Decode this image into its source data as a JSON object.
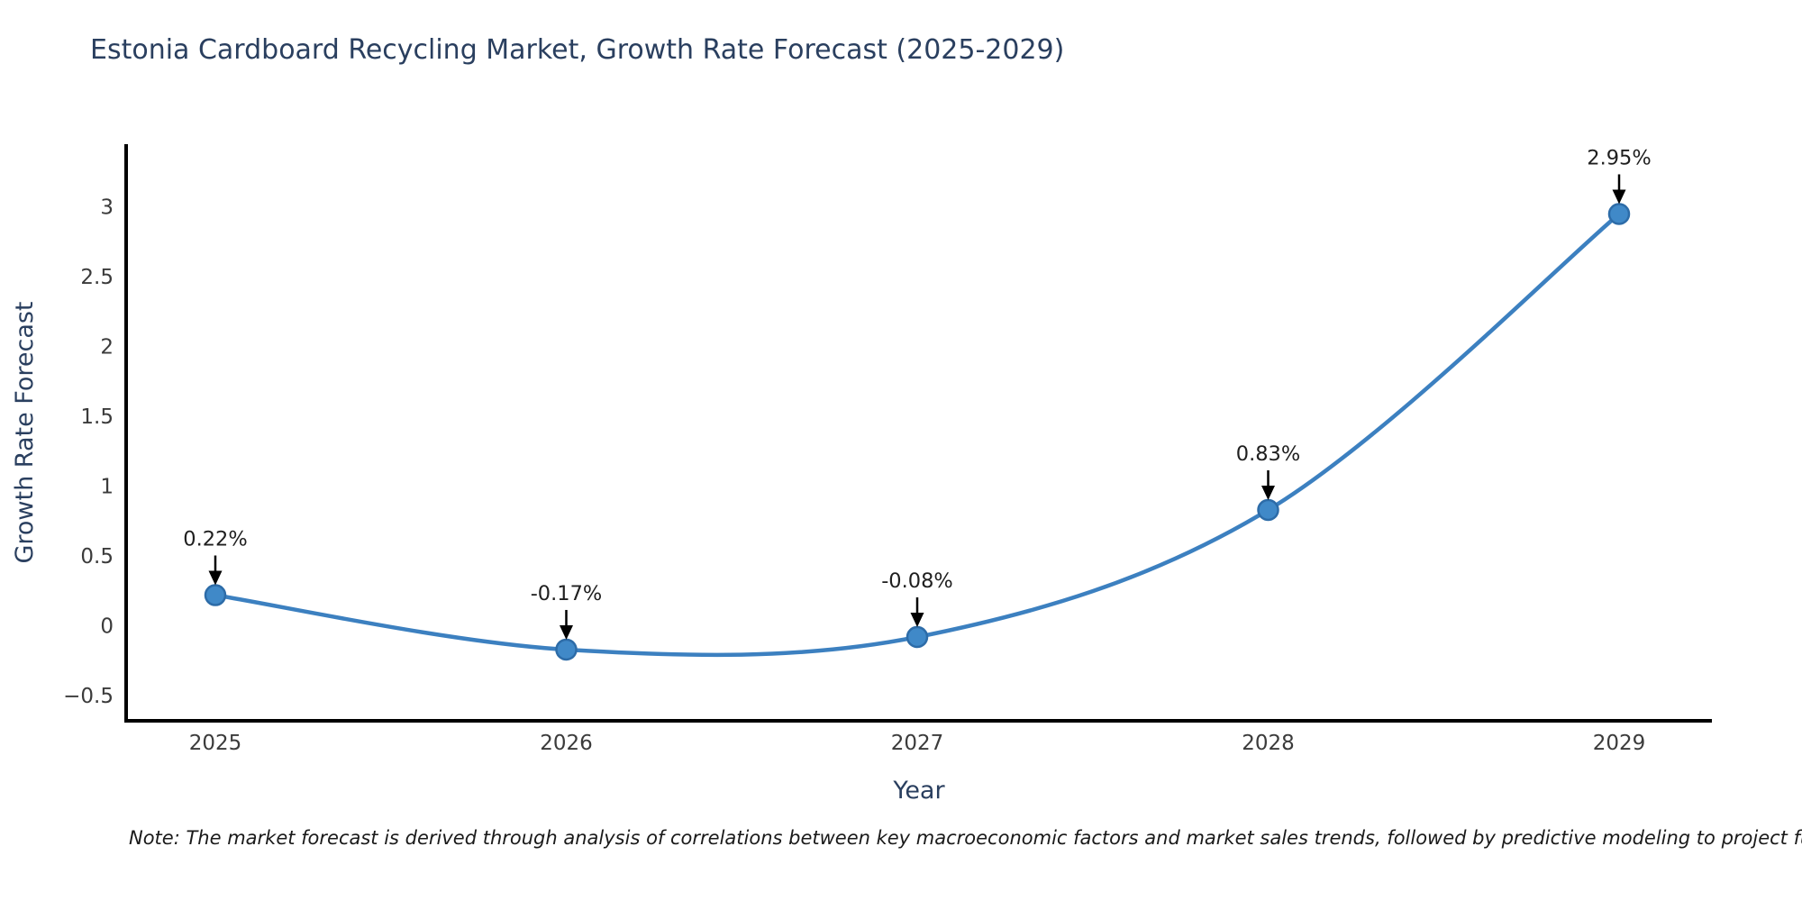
{
  "title": "Estonia Cardboard Recycling Market, Growth Rate Forecast (2025-2029)",
  "note": "Note: The market forecast is derived through analysis of correlations between key macroeconomic factors and market sales trends, followed by predictive modeling to project future sales",
  "chart_data": {
    "type": "line",
    "categories": [
      "2025",
      "2026",
      "2027",
      "2028",
      "2029"
    ],
    "values": [
      0.22,
      -0.17,
      -0.08,
      0.83,
      2.95
    ],
    "point_labels": [
      "0.22%",
      "-0.17%",
      "-0.08%",
      "0.83%",
      "2.95%"
    ],
    "title": "Estonia Cardboard Recycling Market, Growth Rate Forecast (2025-2029)",
    "xlabel": "Year",
    "ylabel": "Growth Rate Forecast",
    "yticks": [
      -0.5,
      0,
      0.5,
      1,
      1.5,
      2,
      2.5,
      3
    ],
    "ylim": [
      -0.68,
      3.45
    ],
    "grid": false,
    "legend": "none",
    "smooth": true,
    "colors": {
      "line": "#3c80c0",
      "marker_fill": "#4089c8",
      "marker_edge": "#2d6ca8",
      "axis": "#000000",
      "tick_label": "#3b3b3b",
      "axis_title": "#2a3f5f",
      "annotation_text": "#1f1f1f",
      "annotation_arrow": "#000000"
    }
  }
}
